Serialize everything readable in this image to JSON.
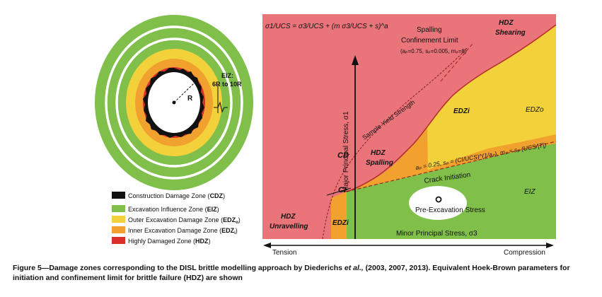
{
  "colors": {
    "hdz": "#e9747a",
    "edz_o": "#f3d13a",
    "edz_i": "#f0a12e",
    "eiz": "#7fbf4a",
    "cdz": "#111111",
    "ring_red": "#d9302a",
    "ring_white": "#ffffff"
  },
  "ring_diagram": {
    "radius_label": "R",
    "eiz_label_line1": "EIZ:",
    "eiz_label_line2": "6R to 10R"
  },
  "legend": {
    "items": [
      {
        "key": "cdz",
        "prefix": "Construction Damage Zone (",
        "abbr": "CDZ",
        "suffix": ")"
      },
      {
        "key": "eiz",
        "prefix": "Excavation Influence Zone (",
        "abbr": "EIZ",
        "suffix": ")"
      },
      {
        "key": "edz_o",
        "prefix": "Outer Excavation Damage Zone (",
        "abbr": "EDZ",
        "sub": "o",
        "suffix": ")"
      },
      {
        "key": "edz_i",
        "prefix": "Inner Excavation Damage Zone (",
        "abbr": "EDZ",
        "sub": "i",
        "suffix": ")"
      },
      {
        "key": "ring_red",
        "prefix": "Highly Damaged Zone (",
        "abbr": "HDZ",
        "suffix": ")"
      }
    ]
  },
  "plot": {
    "formula": "σ1/UCS = σ3/UCS + (m σ3/UCS + s)^a",
    "spalling_limit_line1": "Spalling",
    "spalling_limit_line2": "Confinement Limit",
    "spalling_params": "(aₚ=0.75, sₚ=0.005, mₚ=8)",
    "hdz_shearing_line1": "HDZ",
    "hdz_shearing_line2": "Shearing",
    "y_axis_label": "Major Principal Stress, σ1",
    "sample_yield": "Sample Yield Strength",
    "edz_i_upper": "EDZi",
    "edz_o": "EDZo",
    "cd_label": "CD",
    "ci_label": "CI",
    "hdz_spalling_line1": "HDZ",
    "hdz_spalling_line2": "Spalling",
    "hdz_unravelling_line1": "HDZ",
    "hdz_unravelling_line2": "Unravelling",
    "edz_i_lower": "EDZi",
    "initiation_params": "aₚ = 0.25, sₚ = (CI/UCS)^(1/aₚ), mₚ = sₚ (UCS/|T|)",
    "crack_initiation": "Crack Initiation",
    "pre_excavation": "Pre-Excavation Stress",
    "eiz": "EIZ",
    "x_axis_label": "Minor Principal Stress, σ3",
    "tension": "Tension",
    "compression": "Compression"
  },
  "caption": {
    "lead": "Figure 5—Damage zones corresponding to the DISL brittle modelling approach by Diederichs ",
    "etal": "et al.,",
    "rest": " (2003, 2007, 2013). Equivalent Hoek-Brown parameters for initiation and confinement limit for brittle failure (HDZ) are shown"
  }
}
